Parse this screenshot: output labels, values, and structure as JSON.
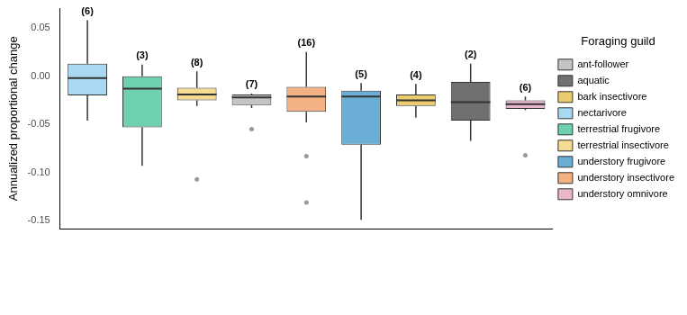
{
  "chart_data": {
    "type": "boxplot",
    "y_label": "Annualized proportional change",
    "legend_title": "Foraging guild",
    "legend": "right",
    "grid": false,
    "tick_labels": "y",
    "ylim": [
      -0.158,
      0.07
    ],
    "yticks": [
      {
        "value": -0.15,
        "label": "-0.15"
      },
      {
        "value": -0.1,
        "label": "-0.10"
      },
      {
        "value": -0.05,
        "label": "-0.05"
      },
      {
        "value": 0,
        "label": "0.00"
      },
      {
        "value": 0.05,
        "label": "0.05"
      }
    ],
    "categories": [
      "nectarivore",
      "terrestrial frugivore",
      "terrestrial insectivore",
      "ant-follower",
      "understory insectivore",
      "understory frugivore",
      "bark insectivore",
      "aquatic",
      "understory omnivore"
    ],
    "colors": [
      "#a9d8f2",
      "#6fd0b0",
      "#f5dc92",
      "#c4c4c4",
      "#f4b183",
      "#6aaed6",
      "#ebcb6e",
      "#707070",
      "#e9b6cb"
    ],
    "boxes": [
      {
        "min": -0.046,
        "q1": -0.02,
        "median": -0.002,
        "q3": 0.013,
        "max": 0.058,
        "outliers": []
      },
      {
        "min": -0.093,
        "q1": -0.053,
        "median": -0.013,
        "q3": 0.0,
        "max": 0.012,
        "outliers": []
      },
      {
        "min": -0.031,
        "q1": -0.025,
        "median": -0.019,
        "q3": -0.012,
        "max": 0.005,
        "outliers": [
          -0.107
        ]
      },
      {
        "min": -0.033,
        "q1": -0.03,
        "median": -0.022,
        "q3": -0.019,
        "max": -0.018,
        "outliers": [
          -0.055
        ]
      },
      {
        "min": -0.048,
        "q1": -0.037,
        "median": -0.021,
        "q3": -0.011,
        "max": 0.025,
        "outliers": [
          -0.083,
          -0.131
        ]
      },
      {
        "min": -0.149,
        "q1": -0.071,
        "median": -0.021,
        "q3": -0.015,
        "max": -0.007,
        "outliers": []
      },
      {
        "min": -0.043,
        "q1": -0.031,
        "median": -0.025,
        "q3": -0.019,
        "max": -0.008,
        "outliers": []
      },
      {
        "min": -0.067,
        "q1": -0.046,
        "median": -0.027,
        "q3": -0.006,
        "max": 0.013,
        "outliers": []
      },
      {
        "min": -0.035,
        "q1": -0.034,
        "median": -0.029,
        "q3": -0.025,
        "max": -0.021,
        "outliers": [
          -0.082
        ]
      }
    ],
    "n": [
      6,
      3,
      8,
      7,
      16,
      5,
      4,
      2,
      6
    ],
    "n_labels": [
      "(6)",
      "(3)",
      "(8)",
      "(7)",
      "(16)",
      "(5)",
      "(4)",
      "(2)",
      "(6)"
    ]
  }
}
